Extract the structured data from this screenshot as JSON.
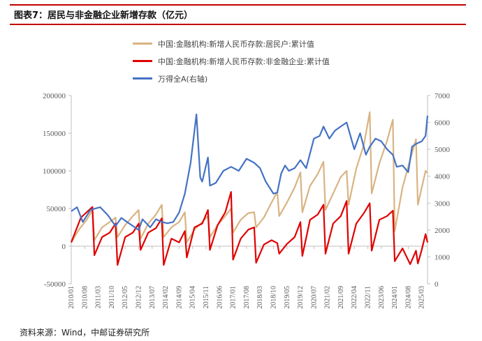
{
  "header": {
    "title": "图表7：居民与非金融企业新增存款（亿元）"
  },
  "source_note": "资料来源：Wind，中邮证券研究所",
  "colors": {
    "household": "#D9B382",
    "enterprise": "#E00000",
    "index": "#4472C4",
    "accent": "#C00000"
  },
  "chart_data": {
    "type": "line",
    "title": "居民与非金融企业新增存款（亿元）",
    "x_tick_labels": [
      "2010/01",
      "2010/08",
      "2011/03",
      "2011/10",
      "2012/05",
      "2012/12",
      "2013/07",
      "2014/02",
      "2014/09",
      "2015/04",
      "2015/11",
      "2016/06",
      "2017/01",
      "2017/08",
      "2018/03",
      "2018/10",
      "2019/05",
      "2019/12",
      "2020/07",
      "2021/02",
      "2021/09",
      "2022/04",
      "2022/11",
      "2023/06",
      "2024/01",
      "2024/08",
      "2025/03"
    ],
    "y_left": {
      "ticks": [
        "-50000",
        "0",
        "50000",
        "100000",
        "150000",
        "200000"
      ],
      "ylim": [
        -50000,
        200000
      ]
    },
    "y_right": {
      "ticks": [
        "0",
        "1000",
        "2000",
        "3000",
        "4000",
        "5000",
        "6000",
        "7000"
      ],
      "ylim": [
        0,
        7000
      ]
    },
    "x_range": [
      "2010/01",
      "2025/06"
    ],
    "grid": false,
    "legend_position": "top-center",
    "series": [
      {
        "name": "中国:金融机构:新增人民币存款:居民户:累计值",
        "axis": "left",
        "points": [
          [
            "2010/01",
            5000
          ],
          [
            "2010/05",
            22000
          ],
          [
            "2010/09",
            35000
          ],
          [
            "2010/12",
            48000
          ],
          [
            "2011/01",
            8000
          ],
          [
            "2011/05",
            25000
          ],
          [
            "2011/09",
            32000
          ],
          [
            "2011/12",
            38000
          ],
          [
            "2012/01",
            12000
          ],
          [
            "2012/05",
            28000
          ],
          [
            "2012/09",
            40000
          ],
          [
            "2012/12",
            48000
          ],
          [
            "2013/01",
            10000
          ],
          [
            "2013/05",
            30000
          ],
          [
            "2013/09",
            42000
          ],
          [
            "2013/12",
            55000
          ],
          [
            "2014/01",
            12000
          ],
          [
            "2014/05",
            25000
          ],
          [
            "2014/09",
            32000
          ],
          [
            "2014/12",
            45000
          ],
          [
            "2015/01",
            5000
          ],
          [
            "2015/05",
            22000
          ],
          [
            "2015/09",
            32000
          ],
          [
            "2015/12",
            40000
          ],
          [
            "2016/01",
            12000
          ],
          [
            "2016/05",
            28000
          ],
          [
            "2016/09",
            40000
          ],
          [
            "2016/12",
            50000
          ],
          [
            "2017/01",
            18000
          ],
          [
            "2017/05",
            35000
          ],
          [
            "2017/09",
            44000
          ],
          [
            "2017/12",
            45000
          ],
          [
            "2018/01",
            25000
          ],
          [
            "2018/05",
            38000
          ],
          [
            "2018/09",
            58000
          ],
          [
            "2018/12",
            72000
          ],
          [
            "2019/01",
            40000
          ],
          [
            "2019/05",
            58000
          ],
          [
            "2019/09",
            78000
          ],
          [
            "2019/12",
            98000
          ],
          [
            "2020/01",
            45000
          ],
          [
            "2020/05",
            80000
          ],
          [
            "2020/09",
            96000
          ],
          [
            "2020/12",
            112000
          ],
          [
            "2021/01",
            48000
          ],
          [
            "2021/05",
            70000
          ],
          [
            "2021/09",
            92000
          ],
          [
            "2021/12",
            100000
          ],
          [
            "2022/01",
            55000
          ],
          [
            "2022/05",
            103000
          ],
          [
            "2022/09",
            135000
          ],
          [
            "2022/12",
            178000
          ],
          [
            "2023/01",
            70000
          ],
          [
            "2023/05",
            110000
          ],
          [
            "2023/09",
            140000
          ],
          [
            "2023/12",
            168000
          ],
          [
            "2024/01",
            20000
          ],
          [
            "2024/05",
            78000
          ],
          [
            "2024/09",
            115000
          ],
          [
            "2024/12",
            142000
          ],
          [
            "2025/01",
            55000
          ],
          [
            "2025/05",
            100000
          ],
          [
            "2025/06",
            97000
          ]
        ]
      },
      {
        "name": "中国:金融机构:新增人民币存款:非金融企业:累计值",
        "axis": "left",
        "points": [
          [
            "2010/01",
            5000
          ],
          [
            "2010/06",
            38000
          ],
          [
            "2010/12",
            52000
          ],
          [
            "2011/01",
            -12000
          ],
          [
            "2011/05",
            12000
          ],
          [
            "2011/09",
            18000
          ],
          [
            "2011/12",
            30000
          ],
          [
            "2012/01",
            -25000
          ],
          [
            "2012/05",
            12000
          ],
          [
            "2012/09",
            18000
          ],
          [
            "2012/12",
            30000
          ],
          [
            "2013/01",
            -5000
          ],
          [
            "2013/05",
            18000
          ],
          [
            "2013/09",
            24000
          ],
          [
            "2013/12",
            37000
          ],
          [
            "2014/01",
            -25000
          ],
          [
            "2014/05",
            10000
          ],
          [
            "2014/09",
            5000
          ],
          [
            "2014/12",
            20000
          ],
          [
            "2015/01",
            -15000
          ],
          [
            "2015/05",
            25000
          ],
          [
            "2015/09",
            30000
          ],
          [
            "2015/12",
            48000
          ],
          [
            "2016/01",
            -5000
          ],
          [
            "2016/05",
            28000
          ],
          [
            "2016/09",
            45000
          ],
          [
            "2016/12",
            72000
          ],
          [
            "2017/01",
            -18000
          ],
          [
            "2017/05",
            10000
          ],
          [
            "2017/09",
            22000
          ],
          [
            "2017/12",
            25000
          ],
          [
            "2018/01",
            -22000
          ],
          [
            "2018/05",
            2000
          ],
          [
            "2018/09",
            8000
          ],
          [
            "2018/12",
            4000
          ],
          [
            "2019/01",
            -10000
          ],
          [
            "2019/05",
            3000
          ],
          [
            "2019/09",
            12000
          ],
          [
            "2019/12",
            32000
          ],
          [
            "2020/01",
            -13000
          ],
          [
            "2020/05",
            35000
          ],
          [
            "2020/09",
            42000
          ],
          [
            "2020/12",
            55000
          ],
          [
            "2021/01",
            -10000
          ],
          [
            "2021/05",
            30000
          ],
          [
            "2021/09",
            40000
          ],
          [
            "2021/12",
            60000
          ],
          [
            "2022/01",
            -10000
          ],
          [
            "2022/05",
            30000
          ],
          [
            "2022/09",
            44000
          ],
          [
            "2022/12",
            57000
          ],
          [
            "2023/01",
            -6000
          ],
          [
            "2023/05",
            35000
          ],
          [
            "2023/09",
            40000
          ],
          [
            "2023/12",
            47000
          ],
          [
            "2024/01",
            -20000
          ],
          [
            "2024/05",
            -3000
          ],
          [
            "2024/09",
            -24000
          ],
          [
            "2024/12",
            -6000
          ],
          [
            "2025/01",
            -23000
          ],
          [
            "2025/03",
            -5000
          ],
          [
            "2025/05",
            16000
          ],
          [
            "2025/06",
            5000
          ]
        ]
      },
      {
        "name": "万得全A(右轴)",
        "axis": "right",
        "points": [
          [
            "2010/01",
            2700
          ],
          [
            "2010/04",
            2850
          ],
          [
            "2010/07",
            2300
          ],
          [
            "2010/11",
            2750
          ],
          [
            "2011/04",
            2850
          ],
          [
            "2011/08",
            2550
          ],
          [
            "2011/12",
            2150
          ],
          [
            "2012/03",
            2450
          ],
          [
            "2012/06",
            2300
          ],
          [
            "2012/10",
            2100
          ],
          [
            "2012/12",
            2000
          ],
          [
            "2013/02",
            2400
          ],
          [
            "2013/06",
            2100
          ],
          [
            "2013/09",
            2400
          ],
          [
            "2013/12",
            2300
          ],
          [
            "2014/03",
            2250
          ],
          [
            "2014/06",
            2300
          ],
          [
            "2014/09",
            2650
          ],
          [
            "2014/12",
            3350
          ],
          [
            "2015/03",
            4500
          ],
          [
            "2015/06",
            6300
          ],
          [
            "2015/08",
            3950
          ],
          [
            "2015/09",
            3800
          ],
          [
            "2015/12",
            4700
          ],
          [
            "2016/01",
            3650
          ],
          [
            "2016/04",
            3750
          ],
          [
            "2016/08",
            4200
          ],
          [
            "2016/12",
            4350
          ],
          [
            "2017/04",
            4200
          ],
          [
            "2017/08",
            4650
          ],
          [
            "2017/12",
            4500
          ],
          [
            "2018/03",
            4300
          ],
          [
            "2018/06",
            3800
          ],
          [
            "2018/10",
            3350
          ],
          [
            "2018/12",
            3400
          ],
          [
            "2019/02",
            4100
          ],
          [
            "2019/04",
            4400
          ],
          [
            "2019/06",
            4200
          ],
          [
            "2019/09",
            4300
          ],
          [
            "2019/12",
            4600
          ],
          [
            "2020/03",
            4300
          ],
          [
            "2020/07",
            5400
          ],
          [
            "2020/10",
            5500
          ],
          [
            "2020/12",
            5850
          ],
          [
            "2021/03",
            5400
          ],
          [
            "2021/06",
            5700
          ],
          [
            "2021/09",
            5850
          ],
          [
            "2021/12",
            6000
          ],
          [
            "2022/04",
            5000
          ],
          [
            "2022/07",
            5600
          ],
          [
            "2022/10",
            4800
          ],
          [
            "2022/12",
            5100
          ],
          [
            "2023/03",
            5400
          ],
          [
            "2023/06",
            5300
          ],
          [
            "2023/09",
            5000
          ],
          [
            "2023/12",
            4800
          ],
          [
            "2024/02",
            4350
          ],
          [
            "2024/05",
            4400
          ],
          [
            "2024/08",
            4150
          ],
          [
            "2024/10",
            5100
          ],
          [
            "2024/12",
            5200
          ],
          [
            "2025/03",
            5300
          ],
          [
            "2025/05",
            5500
          ],
          [
            "2025/06",
            6250
          ]
        ]
      }
    ]
  }
}
